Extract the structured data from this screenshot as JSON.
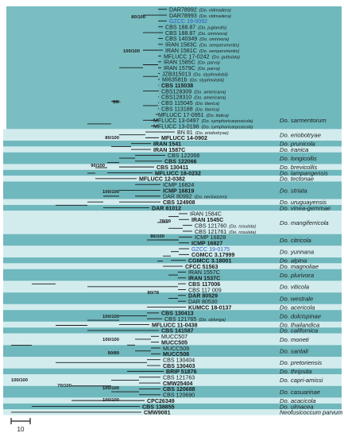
{
  "colors": {
    "band_dark": "#6fb8bd",
    "band_light": "#d2ecee",
    "line": "#1a1a1a",
    "highlight": "#2e5cc4"
  },
  "taxa": [
    {
      "code": "DAR78992",
      "species": "(Do. vidmadera)",
      "bold": false,
      "highlight": false
    },
    {
      "code": "DAR78993",
      "species": "(Do. vidmadera)",
      "bold": false,
      "highlight": false
    },
    {
      "code": "GZCC 19-0092",
      "species": "",
      "bold": false,
      "highlight": true
    },
    {
      "code": "CBS 188.87",
      "species": "(Do. juglandis)",
      "bold": false,
      "highlight": false
    },
    {
      "code": "CBS 188.87",
      "species": "(Do. omnivora)",
      "bold": false,
      "highlight": false
    },
    {
      "code": "CBS 140349",
      "species": "(Do. omnivora)",
      "bold": false,
      "highlight": false
    },
    {
      "code": "IRAN 1583C",
      "species": "(Do. sempervirentis)",
      "bold": false,
      "highlight": false
    },
    {
      "code": "IRAN 1581C",
      "species": "(Do. sempervirentis)",
      "bold": false,
      "highlight": false
    },
    {
      "code": "MFLUCC 17-0242",
      "species": "(Do. guttulata)",
      "bold": false,
      "highlight": false
    },
    {
      "code": "IRAN 1585C",
      "species": "(Do. parva)",
      "bold": false,
      "highlight": false
    },
    {
      "code": "IRAN 1579C",
      "species": "(Do. parva)",
      "bold": false,
      "highlight": false
    },
    {
      "code": "JZB315013",
      "species": "(Do. styphnolobii)",
      "bold": false,
      "highlight": false
    },
    {
      "code": "MI63581b",
      "species": "(Do. styphnolobii)",
      "bold": false,
      "highlight": false
    },
    {
      "code": "CBS 115038",
      "species": "",
      "bold": true,
      "highlight": false
    },
    {
      "code": "CBS128309",
      "species": "(Do. americana)",
      "bold": false,
      "highlight": false
    },
    {
      "code": "CBS128310",
      "species": "(Do. americana)",
      "bold": false,
      "highlight": false
    },
    {
      "code": "CBS 115045",
      "species": "(Do. iberica)",
      "bold": false,
      "highlight": false
    },
    {
      "code": "CBS 113188",
      "species": "(Do. iberica)",
      "bold": false,
      "highlight": false
    },
    {
      "code": "MFLUCC 17-0951",
      "species": "(Do. italica)",
      "bold": false,
      "highlight": false
    },
    {
      "code": "MFLUCC 13-0497",
      "species": "(Do. symphoricarposicola)",
      "bold": false,
      "highlight": false
    },
    {
      "code": "MFLUCC 13-0196",
      "species": "(Do. symphoricarposicola)",
      "bold": false,
      "highlight": false
    },
    {
      "code": "BN 81",
      "species": "(Do. eriobotryae)",
      "bold": false,
      "highlight": false
    },
    {
      "code": "MFLUCC 14-0902",
      "species": "",
      "bold": true,
      "highlight": false
    },
    {
      "code": "IRAN 1541",
      "species": "",
      "bold": true,
      "highlight": false
    },
    {
      "code": "IRAN 1587C",
      "species": "",
      "bold": true,
      "highlight": false
    },
    {
      "code": "CBS 122068",
      "species": "",
      "bold": false,
      "highlight": false
    },
    {
      "code": "CBS 122066",
      "species": "",
      "bold": true,
      "highlight": false
    },
    {
      "code": "CBS 130411",
      "species": "",
      "bold": true,
      "highlight": false
    },
    {
      "code": "MFLUCC 18-0232",
      "species": "",
      "bold": true,
      "highlight": false
    },
    {
      "code": "MFLUCC 12-0382",
      "species": "",
      "bold": true,
      "highlight": false
    },
    {
      "code": "ICMP 16824",
      "species": "",
      "bold": false,
      "highlight": false
    },
    {
      "code": "ICMP 16819",
      "species": "",
      "bold": true,
      "highlight": false
    },
    {
      "code": "DAR 80992",
      "species": "(Do. neclivorem)",
      "bold": false,
      "highlight": false
    },
    {
      "code": "CBS 124908",
      "species": "",
      "bold": true,
      "highlight": false
    },
    {
      "code": "DAR 81012",
      "species": "",
      "bold": true,
      "highlight": false
    },
    {
      "code": "IRAN 1584C",
      "species": "",
      "bold": false,
      "highlight": false
    },
    {
      "code": "IRAN 1545C",
      "species": "",
      "bold": true,
      "highlight": false
    },
    {
      "code": "CBS 121760",
      "species": "(Do. rosulata)",
      "bold": false,
      "highlight": false
    },
    {
      "code": "CBS 121761",
      "species": "(Do. rosulata)",
      "bold": false,
      "highlight": false
    },
    {
      "code": "ICMP 16828",
      "species": "",
      "bold": false,
      "highlight": false
    },
    {
      "code": "ICMP 16827",
      "species": "",
      "bold": true,
      "highlight": false
    },
    {
      "code": "GZCC 19-0175",
      "species": "",
      "bold": false,
      "highlight": true
    },
    {
      "code": "CGMCC 3.17999",
      "species": "",
      "bold": true,
      "highlight": false
    },
    {
      "code": "CGMCC 3.18001",
      "species": "",
      "bold": true,
      "highlight": false
    },
    {
      "code": "CFCC 51563",
      "species": "",
      "bold": true,
      "highlight": false
    },
    {
      "code": "IRAN 1557C",
      "species": "",
      "bold": false,
      "highlight": false
    },
    {
      "code": "IRAN 1537C",
      "species": "",
      "bold": true,
      "highlight": false
    },
    {
      "code": "CBS 117006",
      "species": "",
      "bold": true,
      "highlight": false
    },
    {
      "code": "CBS 117 009",
      "species": "",
      "bold": false,
      "highlight": false
    },
    {
      "code": "DAR 80529",
      "species": "",
      "bold": true,
      "highlight": false
    },
    {
      "code": "DAR 80530",
      "species": "",
      "bold": false,
      "highlight": false
    },
    {
      "code": "KUMCC 18-0137",
      "species": "",
      "bold": true,
      "highlight": false
    },
    {
      "code": "CBS 130413",
      "species": "",
      "bold": true,
      "highlight": false
    },
    {
      "code": "CBS 121765",
      "species": "(Do. oblonga)",
      "bold": false,
      "highlight": false
    },
    {
      "code": "MFLUCC 11-0438",
      "species": "",
      "bold": true,
      "highlight": false
    },
    {
      "code": "CBS 141587",
      "species": "",
      "bold": true,
      "highlight": false
    },
    {
      "code": "MUCC507",
      "species": "",
      "bold": false,
      "highlight": false
    },
    {
      "code": "MUCC505",
      "species": "",
      "bold": true,
      "highlight": false
    },
    {
      "code": "MUCC509",
      "species": "",
      "bold": false,
      "highlight": false
    },
    {
      "code": "MUCC508",
      "species": "",
      "bold": true,
      "highlight": false
    },
    {
      "code": "CBS 130404",
      "species": "",
      "bold": false,
      "highlight": false
    },
    {
      "code": "CBS 130403",
      "species": "",
      "bold": true,
      "highlight": false
    },
    {
      "code": "BRIP 51876",
      "species": "",
      "bold": true,
      "highlight": false
    },
    {
      "code": "CBS 121763",
      "species": "",
      "bold": false,
      "highlight": false
    },
    {
      "code": "CMW25404",
      "species": "",
      "bold": true,
      "highlight": false
    },
    {
      "code": "CBS 120688",
      "species": "",
      "bold": true,
      "highlight": false
    },
    {
      "code": "CBS 120690",
      "species": "",
      "bold": false,
      "highlight": false
    },
    {
      "code": "CPC26349",
      "species": "",
      "bold": true,
      "highlight": false
    },
    {
      "code": "CBS 138855",
      "species": "",
      "bold": true,
      "highlight": false
    },
    {
      "code": "CMW9081",
      "species": "",
      "bold": true,
      "highlight": false
    }
  ],
  "clades": [
    {
      "name": "Do. sarmentorum",
      "from": 0,
      "to": 20
    },
    {
      "name": "Do. eriobotryae",
      "from": 21,
      "to": 22
    },
    {
      "name": "Do. prunicola",
      "from": 23,
      "to": 23
    },
    {
      "name": "Do. iranica",
      "from": 24,
      "to": 24
    },
    {
      "name": "Do. longicollis",
      "from": 25,
      "to": 26
    },
    {
      "name": "Do. brevicollis",
      "from": 27,
      "to": 27
    },
    {
      "name": "Do. lampangensis",
      "from": 28,
      "to": 28
    },
    {
      "name": "Do. tectonae",
      "from": 29,
      "to": 29
    },
    {
      "name": "Do. striata",
      "from": 30,
      "to": 32
    },
    {
      "name": "Do. uruguayensis",
      "from": 33,
      "to": 33
    },
    {
      "name": "Do. vinea-gemmae",
      "from": 34,
      "to": 34
    },
    {
      "name": "Do. mangiferricola",
      "from": 35,
      "to": 38
    },
    {
      "name": "Do. citricola",
      "from": 39,
      "to": 40
    },
    {
      "name": "Do. yunnana",
      "from": 41,
      "to": 42
    },
    {
      "name": "Do. alpina",
      "from": 43,
      "to": 43
    },
    {
      "name": "Do. magnoliae",
      "from": 44,
      "to": 44
    },
    {
      "name": "Do. plurivora",
      "from": 45,
      "to": 46
    },
    {
      "name": "Do. viticola",
      "from": 47,
      "to": 48
    },
    {
      "name": "Do. westrale",
      "from": 49,
      "to": 50
    },
    {
      "name": "Do. acericola",
      "from": 51,
      "to": 51
    },
    {
      "name": "Do. dulcispinae",
      "from": 52,
      "to": 53
    },
    {
      "name": "Do. thailandica",
      "from": 54,
      "to": 54
    },
    {
      "name": "Do. californica",
      "from": 55,
      "to": 55
    },
    {
      "name": "Do. moneti",
      "from": 56,
      "to": 57
    },
    {
      "name": "Do. santali",
      "from": 58,
      "to": 59
    },
    {
      "name": "Do. pretoriensis",
      "from": 60,
      "to": 61
    },
    {
      "name": "Do. thripsita",
      "from": 62,
      "to": 62
    },
    {
      "name": "Do. capri-amissi",
      "from": 63,
      "to": 64
    },
    {
      "name": "Do. casuarinae",
      "from": 65,
      "to": 66
    },
    {
      "name": "Do. acacicola",
      "from": 67,
      "to": 67
    },
    {
      "name": "Do. ulmacea",
      "from": 68,
      "to": 68
    },
    {
      "name": "Neofusicoccum parvum",
      "from": 69,
      "to": 69
    }
  ],
  "supports": [
    "80/100",
    "100/100",
    "88/-",
    "80/100",
    "90/100",
    "100/100",
    "78/99",
    "86/100",
    "80/78",
    "100/100",
    "100/100",
    "90/89",
    "70/100",
    "100/100",
    "100/100",
    "100/100"
  ],
  "scale": {
    "label": "10"
  }
}
